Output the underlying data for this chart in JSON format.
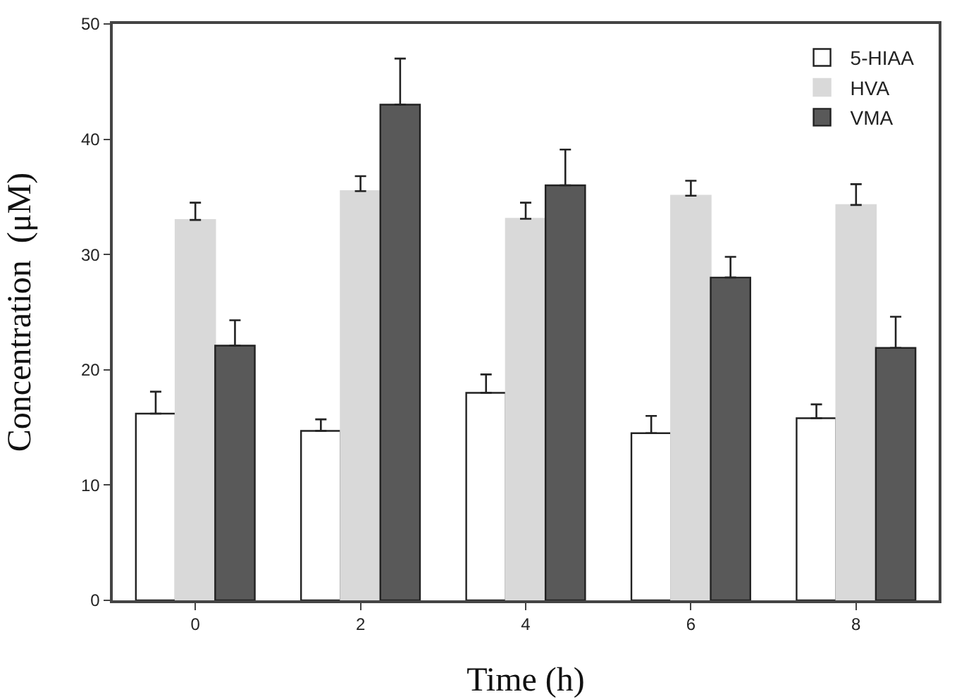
{
  "chart_data": {
    "type": "bar",
    "xlabel": "Time (h)",
    "ylabel": "Concentration  (μM)",
    "categories": [
      "0",
      "2",
      "4",
      "6",
      "8"
    ],
    "series": [
      {
        "name": "5-HIAA",
        "color": "#ffffff",
        "values": [
          16.2,
          14.7,
          18.0,
          14.5,
          15.8
        ],
        "errors": [
          1.9,
          1.0,
          1.6,
          1.5,
          1.2
        ]
      },
      {
        "name": "HVA",
        "color": "#d9d9d9",
        "values": [
          33.0,
          35.5,
          33.1,
          35.1,
          34.3
        ],
        "errors": [
          1.5,
          1.3,
          1.4,
          1.3,
          1.8
        ]
      },
      {
        "name": "VMA",
        "color": "#595959",
        "values": [
          22.1,
          43.0,
          36.0,
          28.0,
          21.9
        ],
        "errors": [
          2.2,
          4.0,
          3.1,
          1.8,
          2.7
        ]
      }
    ],
    "ylim": [
      0,
      50
    ],
    "yticks": [
      0,
      10,
      20,
      30,
      40,
      50
    ],
    "grid": false,
    "legend": "top right"
  }
}
